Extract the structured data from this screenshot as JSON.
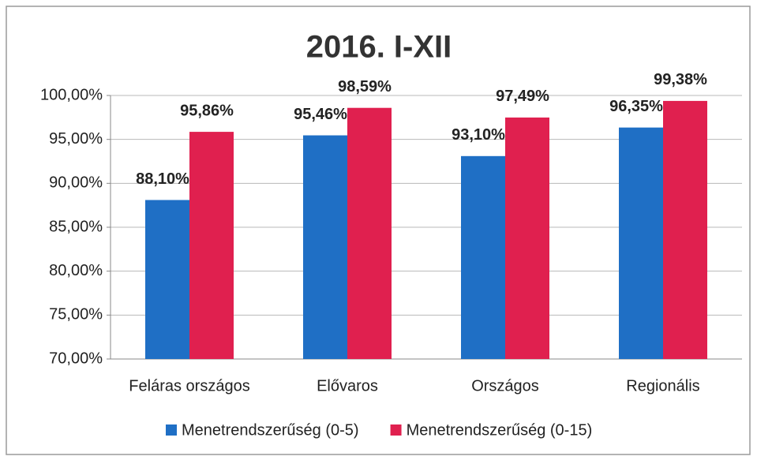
{
  "chart_data": {
    "type": "bar",
    "title": "2016. I-XII",
    "categories": [
      "Feláras országos",
      "Elővaros",
      "Országos",
      "Regionális"
    ],
    "series": [
      {
        "name": "Menetrendszerűség (0-5)",
        "color": "#1f6fc5",
        "values": [
          88.1,
          95.46,
          93.1,
          96.35
        ],
        "value_labels": [
          "88,10%",
          "95,46%",
          "93,10%",
          "96,35%"
        ]
      },
      {
        "name": "Menetrendszerűség (0-15)",
        "color": "#e0204f",
        "values": [
          95.86,
          98.59,
          97.49,
          99.38
        ],
        "value_labels": [
          "95,86%",
          "98,59%",
          "97,49%",
          "99,38%"
        ]
      }
    ],
    "ylim": [
      70,
      100
    ],
    "yticks": [
      {
        "value": 70,
        "label": "70,00%"
      },
      {
        "value": 75,
        "label": "75,00%"
      },
      {
        "value": 80,
        "label": "80,00%"
      },
      {
        "value": 85,
        "label": "85,00%"
      },
      {
        "value": 90,
        "label": "90,00%"
      },
      {
        "value": 95,
        "label": "95,00%"
      },
      {
        "value": 100,
        "label": "100,00%"
      }
    ],
    "grid": true,
    "legend": "bottom"
  }
}
